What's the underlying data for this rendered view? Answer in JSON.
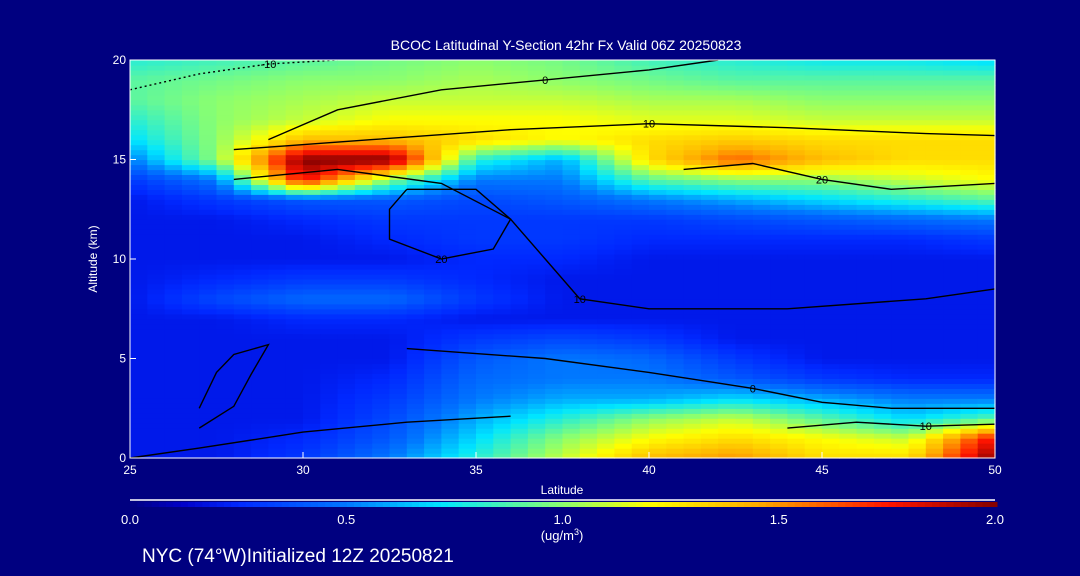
{
  "chart_data": {
    "type": "heatmap",
    "title": "BCOC Latitudinal Y-Section 42hr  Fx Valid 06Z 20250823",
    "xlabel": "Latitude",
    "ylabel": "Altitude (km)",
    "xlim": [
      25,
      50
    ],
    "ylim": [
      0,
      20
    ],
    "xticks": [
      "25",
      "30",
      "35",
      "40",
      "45",
      "50"
    ],
    "yticks": [
      "0",
      "5",
      "10",
      "15",
      "20"
    ],
    "lat": [
      25,
      27.5,
      30,
      32.5,
      35,
      37.5,
      40,
      42.5,
      45,
      47.5,
      50
    ],
    "alt": [
      20,
      19,
      18,
      17,
      16,
      15,
      14,
      13,
      12,
      11,
      10,
      9,
      8,
      7,
      6,
      5,
      4,
      3,
      2,
      1,
      0
    ],
    "values": [
      [
        0.8,
        0.85,
        0.9,
        0.95,
        1.0,
        0.95,
        0.85,
        0.8,
        0.75,
        0.75,
        0.7
      ],
      [
        0.9,
        0.95,
        1.0,
        1.0,
        1.05,
        1.0,
        0.95,
        0.9,
        0.9,
        0.9,
        0.9
      ],
      [
        0.9,
        1.0,
        1.05,
        1.1,
        1.1,
        1.1,
        1.05,
        1.05,
        1.0,
        1.0,
        1.0
      ],
      [
        0.8,
        1.0,
        1.1,
        1.2,
        1.2,
        1.2,
        1.15,
        1.15,
        1.1,
        1.1,
        1.1
      ],
      [
        0.7,
        1.0,
        1.4,
        1.4,
        1.3,
        1.2,
        1.3,
        1.35,
        1.3,
        1.3,
        1.3
      ],
      [
        0.5,
        1.0,
        2.0,
        2.0,
        0.8,
        0.6,
        1.3,
        1.6,
        1.4,
        1.3,
        1.3
      ],
      [
        0.3,
        0.5,
        1.8,
        1.0,
        0.5,
        0.5,
        0.9,
        1.0,
        1.0,
        1.1,
        1.2
      ],
      [
        0.2,
        0.3,
        0.4,
        0.4,
        0.35,
        0.4,
        0.5,
        0.6,
        0.7,
        0.8,
        0.9
      ],
      [
        0.2,
        0.2,
        0.25,
        0.3,
        0.3,
        0.3,
        0.3,
        0.35,
        0.4,
        0.45,
        0.5
      ],
      [
        0.2,
        0.2,
        0.2,
        0.25,
        0.3,
        0.3,
        0.25,
        0.25,
        0.25,
        0.25,
        0.3
      ],
      [
        0.2,
        0.2,
        0.2,
        0.2,
        0.25,
        0.25,
        0.2,
        0.2,
        0.2,
        0.2,
        0.2
      ],
      [
        0.2,
        0.25,
        0.3,
        0.3,
        0.25,
        0.2,
        0.2,
        0.2,
        0.2,
        0.2,
        0.2
      ],
      [
        0.2,
        0.35,
        0.45,
        0.45,
        0.3,
        0.2,
        0.2,
        0.2,
        0.2,
        0.2,
        0.2
      ],
      [
        0.2,
        0.2,
        0.25,
        0.25,
        0.2,
        0.2,
        0.2,
        0.2,
        0.2,
        0.2,
        0.2
      ],
      [
        0.2,
        0.2,
        0.2,
        0.2,
        0.3,
        0.35,
        0.3,
        0.2,
        0.2,
        0.2,
        0.2
      ],
      [
        0.2,
        0.2,
        0.2,
        0.2,
        0.4,
        0.5,
        0.45,
        0.3,
        0.2,
        0.2,
        0.2
      ],
      [
        0.2,
        0.2,
        0.2,
        0.25,
        0.45,
        0.5,
        0.5,
        0.4,
        0.3,
        0.25,
        0.25
      ],
      [
        0.2,
        0.2,
        0.2,
        0.3,
        0.5,
        0.6,
        0.6,
        0.7,
        0.6,
        0.5,
        0.5
      ],
      [
        0.2,
        0.2,
        0.2,
        0.35,
        0.6,
        0.8,
        1.0,
        1.1,
        0.9,
        0.7,
        0.9
      ],
      [
        0.2,
        0.2,
        0.25,
        0.4,
        0.7,
        1.0,
        1.2,
        1.3,
        1.2,
        1.1,
        1.8
      ],
      [
        0.2,
        0.2,
        0.3,
        0.5,
        0.8,
        1.1,
        1.4,
        1.5,
        1.3,
        1.3,
        2.0
      ]
    ],
    "contours": [
      {
        "label": "-10",
        "dashed": true,
        "points": [
          [
            25,
            18.5
          ],
          [
            27,
            19.3
          ],
          [
            29,
            19.8
          ],
          [
            31,
            20
          ]
        ]
      },
      {
        "label": "0",
        "dashed": false,
        "points": [
          [
            29,
            16
          ],
          [
            31,
            17.5
          ],
          [
            34,
            18.5
          ],
          [
            37,
            19
          ],
          [
            40,
            19.5
          ],
          [
            42,
            20
          ]
        ]
      },
      {
        "label": "10",
        "dashed": false,
        "points": [
          [
            28,
            15.5
          ],
          [
            32,
            16
          ],
          [
            36,
            16.5
          ],
          [
            40,
            16.8
          ],
          [
            44,
            16.6
          ],
          [
            48,
            16.3
          ],
          [
            50,
            16.2
          ]
        ]
      },
      {
        "label": "10",
        "dashed": false,
        "points": [
          [
            28,
            14
          ],
          [
            31,
            14.5
          ],
          [
            34,
            13.8
          ],
          [
            36,
            12
          ],
          [
            37,
            10
          ],
          [
            38,
            8
          ],
          [
            40,
            7.5
          ],
          [
            44,
            7.5
          ],
          [
            48,
            8
          ],
          [
            50,
            8.5
          ]
        ]
      },
      {
        "label": "20",
        "dashed": false,
        "points": [
          [
            33,
            13.5
          ],
          [
            35,
            13.5
          ],
          [
            36,
            12
          ],
          [
            35.5,
            10.5
          ],
          [
            34,
            10
          ],
          [
            32.5,
            11
          ],
          [
            32.5,
            12.5
          ],
          [
            33,
            13.5
          ]
        ]
      },
      {
        "label": "20",
        "dashed": false,
        "points": [
          [
            41,
            14.5
          ],
          [
            43,
            14.8
          ],
          [
            45,
            14
          ],
          [
            47,
            13.5
          ],
          [
            50,
            13.8
          ]
        ]
      },
      {
        "label": "0",
        "dashed": false,
        "points": [
          [
            33,
            5.5
          ],
          [
            37,
            5
          ],
          [
            40,
            4.3
          ],
          [
            43,
            3.5
          ],
          [
            45,
            2.8
          ],
          [
            47,
            2.5
          ],
          [
            50,
            2.5
          ]
        ]
      },
      {
        "label": "10",
        "dashed": false,
        "points": [
          [
            44,
            1.5
          ],
          [
            46,
            1.8
          ],
          [
            48,
            1.6
          ],
          [
            50,
            1.7
          ]
        ]
      },
      {
        "label": "",
        "dashed": false,
        "points": [
          [
            25,
            0
          ],
          [
            27,
            0.5
          ],
          [
            30,
            1.3
          ],
          [
            33,
            1.8
          ],
          [
            36,
            2.1
          ]
        ]
      },
      {
        "label": "",
        "dashed": false,
        "points": [
          [
            27,
            1.5
          ],
          [
            28,
            2.6
          ],
          [
            28.5,
            4.2
          ],
          [
            29,
            5.7
          ],
          [
            28,
            5.2
          ],
          [
            27.5,
            4.3
          ],
          [
            27,
            2.5
          ]
        ]
      }
    ],
    "colorbar": {
      "min": 0.0,
      "max": 2.0,
      "ticks": [
        "0.0",
        "0.5",
        "1.0",
        "1.5",
        "2.0"
      ],
      "units_label": "(ug/m",
      "units_sup": "3",
      "units_close": ")"
    },
    "footer": "NYC (74°W)Initialized 12Z 20250821"
  }
}
